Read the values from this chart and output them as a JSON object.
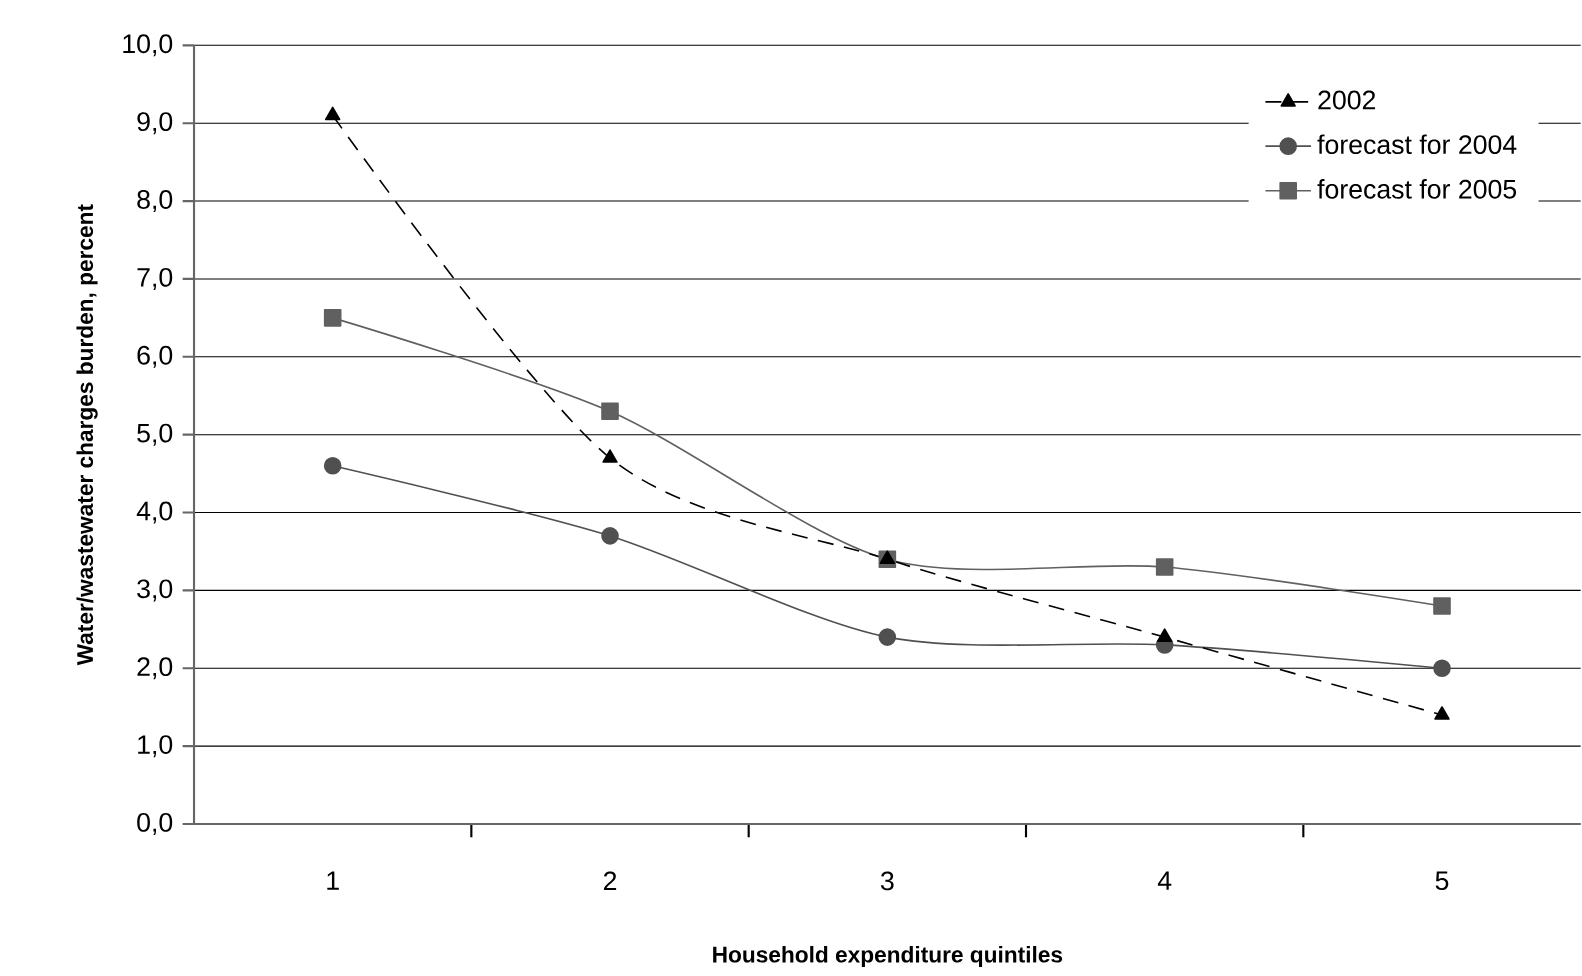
{
  "chart_data": {
    "type": "line",
    "xlabel": "Household expenditure quintiles",
    "ylabel": "Water/wastewater charges burden, percent",
    "categories": [
      "1",
      "2",
      "3",
      "4",
      "5"
    ],
    "series": [
      {
        "name": "2002",
        "color": "#000000",
        "marker": "triangle",
        "line_style": "dashed",
        "values": [
          9.1,
          4.7,
          3.4,
          2.4,
          1.4
        ]
      },
      {
        "name": "forecast for 2004",
        "color": "#505050",
        "marker": "circle",
        "line_style": "solid",
        "values": [
          4.6,
          3.7,
          2.4,
          2.3,
          2.0
        ]
      },
      {
        "name": "forecast for 2005",
        "color": "#606060",
        "marker": "square",
        "line_style": "solid",
        "values": [
          6.5,
          5.3,
          3.4,
          3.3,
          2.8
        ]
      }
    ],
    "ylim": [
      0,
      10
    ],
    "yticks": [
      {
        "value": 0,
        "label": "0,0"
      },
      {
        "value": 1,
        "label": "1,0"
      },
      {
        "value": 2,
        "label": "2,0"
      },
      {
        "value": 3,
        "label": "3,0"
      },
      {
        "value": 4,
        "label": "4,0"
      },
      {
        "value": 5,
        "label": "5,0"
      },
      {
        "value": 6,
        "label": "6,0"
      },
      {
        "value": 7,
        "label": "7,0"
      },
      {
        "value": 8,
        "label": "8,0"
      },
      {
        "value": 9,
        "label": "9,0"
      },
      {
        "value": 10,
        "label": "10,0"
      }
    ],
    "grid": "y",
    "legend": "top right"
  }
}
